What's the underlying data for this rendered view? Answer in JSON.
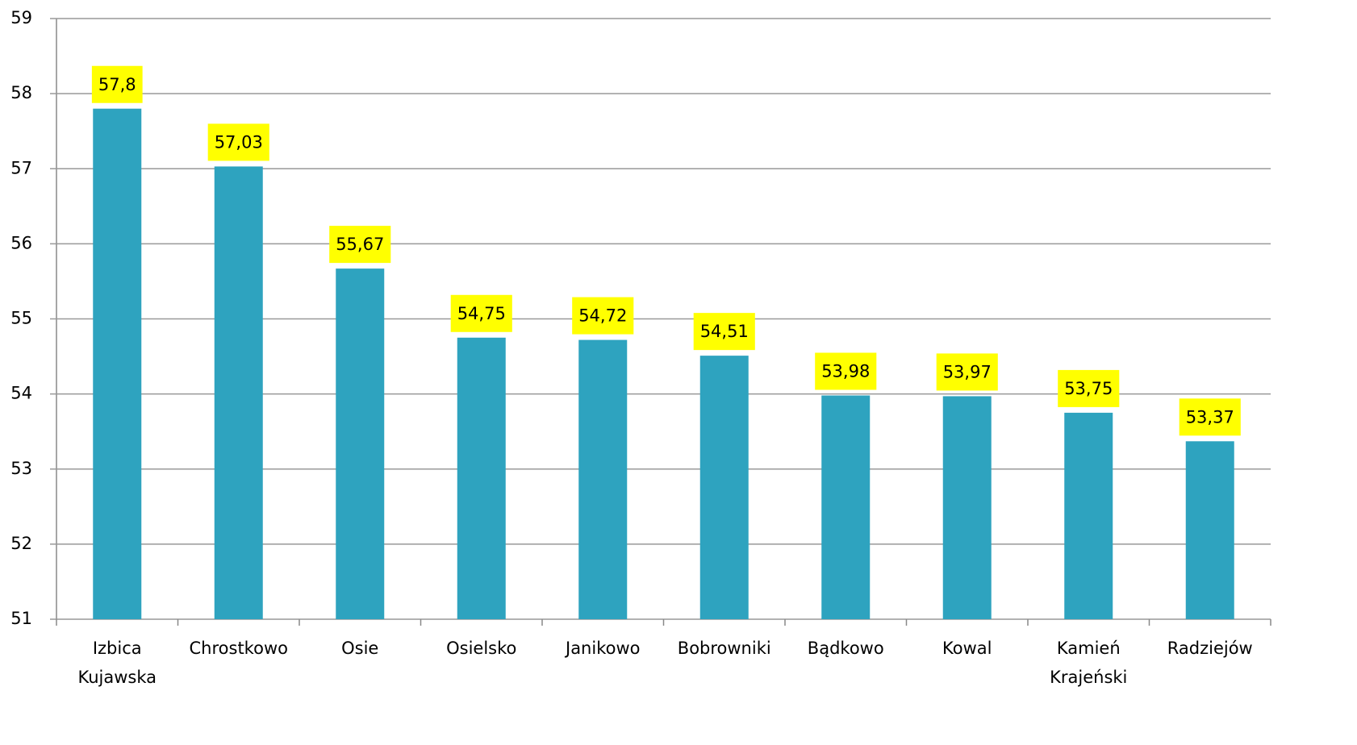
{
  "chart_data": {
    "type": "bar",
    "categories": [
      "Izbica Kujawska",
      "Chrostkowo",
      "Osie",
      "Osielsko",
      "Janikowo",
      "Bobrowniki",
      "Bądkowo",
      "Kowal",
      "Kamień Krajeński",
      "Radziejów"
    ],
    "values": [
      57.8,
      57.03,
      55.67,
      54.75,
      54.72,
      54.51,
      53.98,
      53.97,
      53.75,
      53.37
    ],
    "value_labels": [
      "57,8",
      "57,03",
      "55,67",
      "54,75",
      "54,72",
      "54,51",
      "53,98",
      "53,97",
      "53,75",
      "53,37"
    ],
    "color": "#2ea3bf",
    "label_background": "#ffff00",
    "ylim": [
      51,
      59
    ],
    "yticks": [
      51,
      52,
      53,
      54,
      55,
      56,
      57,
      58,
      59
    ],
    "grid": true
  }
}
